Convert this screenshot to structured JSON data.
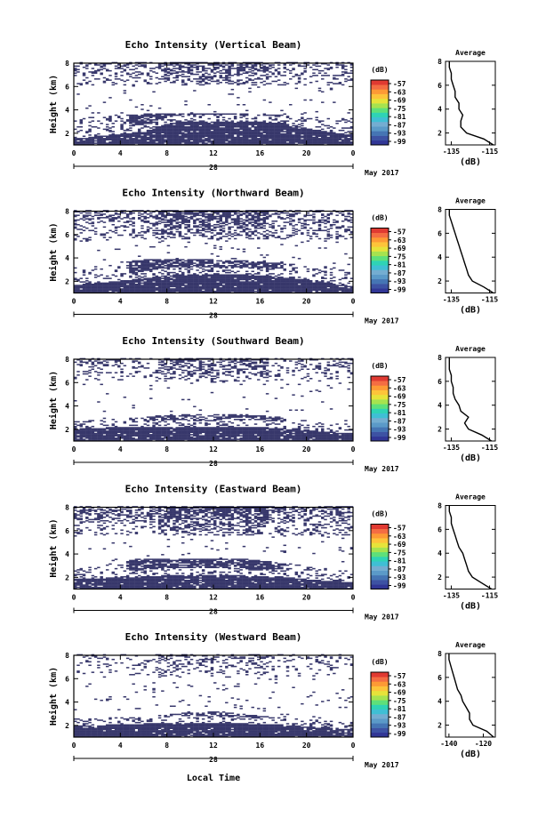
{
  "figure": {
    "xlabel": "Local Time",
    "date_label": "May 2017",
    "day_label": "28",
    "cb_unit": "(dB)",
    "cb_ticks": [
      "-57",
      "-63",
      "-69",
      "-75",
      "-81",
      "-87",
      "-93",
      "-99"
    ],
    "cb_colors": [
      "#313695",
      "#3d52a3",
      "#4575b4",
      "#5b9ac8",
      "#74add1",
      "#3fbfd4",
      "#2fd3b5",
      "#5ee07a",
      "#a6e34f",
      "#e6e33a",
      "#fdc43a",
      "#fd9a35",
      "#f46d43",
      "#e03a32"
    ]
  },
  "chart_data": [
    {
      "type": "heatmap",
      "title": "Echo Intensity (Vertical Beam)",
      "ylabel": "Height (km)",
      "xticks": [
        "0",
        "4",
        "8",
        "12",
        "16",
        "20",
        "0"
      ],
      "yticks": [
        "2",
        "4",
        "6",
        "8"
      ],
      "x_range_hours": [
        0,
        24
      ],
      "y_range_km": [
        1,
        8
      ],
      "fill_color": "#37376b",
      "layers": [
        {
          "band": "low",
          "bottom_km": 1.0,
          "top_km": [
            1.5,
            1.8,
            2.1,
            3.0,
            3.0,
            3.0,
            2.8,
            2.2,
            1.8
          ]
        },
        {
          "band": "mid",
          "top_km": [
            3.3,
            3.4,
            3.6,
            3.7,
            3.7,
            3.6,
            3.5,
            3.3,
            3.2
          ],
          "cover": 0.55
        },
        {
          "band": "upper",
          "bottom_km": 6.0,
          "top_km": 8.0,
          "cover": 0.35
        }
      ],
      "average": {
        "title": "Average",
        "xlabel": "(dB)",
        "xticks": [
          "-135",
          "-115"
        ],
        "yticks": [
          "2",
          "4",
          "6",
          "8"
        ],
        "xlim": [
          -138,
          -112
        ],
        "profile_km": [
          1.0,
          1.5,
          2.0,
          2.5,
          3.0,
          3.5,
          4.0,
          4.5,
          5.0,
          5.5,
          6.0,
          6.5,
          7.0,
          7.5,
          8.0
        ],
        "profile_db": [
          -113,
          -118,
          -127,
          -130,
          -130,
          -129,
          -131,
          -131,
          -133,
          -133,
          -134,
          -135,
          -135,
          -136,
          -136
        ]
      }
    },
    {
      "type": "heatmap",
      "title": "Echo Intensity (Northward Beam)",
      "ylabel": "Height (km)",
      "xticks": [
        "0",
        "4",
        "8",
        "12",
        "16",
        "20",
        "0"
      ],
      "yticks": [
        "2",
        "4",
        "6",
        "8"
      ],
      "x_range_hours": [
        0,
        24
      ],
      "y_range_km": [
        1,
        8
      ],
      "fill_color": "#37376b",
      "layers": [
        {
          "band": "low",
          "bottom_km": 1.0,
          "top_km": [
            1.6,
            1.9,
            2.2,
            2.6,
            2.6,
            2.5,
            2.3,
            2.0,
            1.5
          ]
        },
        {
          "band": "mid",
          "top_km": [
            3.0,
            3.5,
            3.8,
            3.9,
            3.8,
            3.7,
            3.5,
            3.2,
            3.0
          ],
          "cover": 0.5
        },
        {
          "band": "upper",
          "bottom_km": 5.5,
          "top_km": 8.0,
          "cover": 0.45
        }
      ],
      "average": {
        "title": "Average",
        "xlabel": "(dB)",
        "xticks": [
          "-135",
          "-115"
        ],
        "yticks": [
          "2",
          "4",
          "6",
          "8"
        ],
        "xlim": [
          -138,
          -112
        ],
        "profile_km": [
          1.0,
          1.5,
          2.0,
          2.5,
          3.0,
          3.5,
          4.0,
          4.5,
          5.0,
          5.5,
          6.0,
          6.5,
          7.0,
          7.5,
          8.0
        ],
        "profile_db": [
          -113,
          -118,
          -124,
          -126,
          -127,
          -128,
          -129,
          -130,
          -131,
          -132,
          -133,
          -134,
          -135,
          -136,
          -136
        ]
      }
    },
    {
      "type": "heatmap",
      "title": "Echo Intensity (Southward Beam)",
      "ylabel": "Height (km)",
      "xticks": [
        "0",
        "4",
        "8",
        "12",
        "16",
        "20",
        "0"
      ],
      "yticks": [
        "2",
        "4",
        "6",
        "8"
      ],
      "x_range_hours": [
        0,
        24
      ],
      "y_range_km": [
        1,
        8
      ],
      "fill_color": "#37376b",
      "layers": [
        {
          "band": "low",
          "bottom_km": 1.0,
          "top_km": [
            2.0,
            2.1,
            2.2,
            2.2,
            2.2,
            2.2,
            2.0,
            1.8,
            1.6
          ]
        },
        {
          "band": "mid",
          "top_km": [
            2.6,
            2.8,
            3.0,
            3.3,
            3.3,
            3.2,
            3.0,
            2.6,
            2.4
          ],
          "cover": 0.35
        },
        {
          "band": "upper",
          "bottom_km": 6.0,
          "top_km": 8.0,
          "cover": 0.3
        }
      ],
      "average": {
        "title": "Average",
        "xlabel": "(dB)",
        "xticks": [
          "-135",
          "-115"
        ],
        "yticks": [
          "2",
          "4",
          "6",
          "8"
        ],
        "xlim": [
          -138,
          -112
        ],
        "profile_km": [
          1.0,
          1.5,
          2.0,
          2.5,
          3.0,
          3.5,
          4.0,
          4.5,
          5.0,
          5.5,
          6.0,
          6.5,
          7.0,
          7.5,
          8.0
        ],
        "profile_db": [
          -114,
          -119,
          -126,
          -128,
          -126,
          -130,
          -131,
          -133,
          -134,
          -134,
          -135,
          -135,
          -136,
          -136,
          -136
        ]
      }
    },
    {
      "type": "heatmap",
      "title": "Echo Intensity (Eastward Beam)",
      "ylabel": "Height (km)",
      "xticks": [
        "0",
        "4",
        "8",
        "12",
        "16",
        "20",
        "0"
      ],
      "yticks": [
        "2",
        "4",
        "6",
        "8"
      ],
      "x_range_hours": [
        0,
        24
      ],
      "y_range_km": [
        1,
        8
      ],
      "fill_color": "#37376b",
      "layers": [
        {
          "band": "low",
          "bottom_km": 1.0,
          "top_km": [
            1.8,
            1.9,
            2.0,
            2.2,
            2.2,
            2.1,
            2.0,
            1.7,
            1.5
          ]
        },
        {
          "band": "mid",
          "top_km": [
            2.8,
            3.2,
            3.6,
            3.6,
            3.6,
            3.5,
            3.2,
            2.8,
            2.5
          ],
          "cover": 0.5
        },
        {
          "band": "upper",
          "bottom_km": 5.5,
          "top_km": 8.0,
          "cover": 0.45
        }
      ],
      "average": {
        "title": "Average",
        "xlabel": "(dB)",
        "xticks": [
          "-135",
          "-115"
        ],
        "yticks": [
          "2",
          "4",
          "6",
          "8"
        ],
        "xlim": [
          -138,
          -112
        ],
        "profile_km": [
          1.0,
          1.5,
          2.0,
          2.5,
          3.0,
          3.5,
          4.0,
          4.5,
          5.0,
          5.5,
          6.0,
          6.5,
          7.0,
          7.5,
          8.0
        ],
        "profile_db": [
          -114,
          -119,
          -124,
          -126,
          -127,
          -128,
          -129,
          -131,
          -132,
          -133,
          -134,
          -135,
          -135,
          -136,
          -136
        ]
      }
    },
    {
      "type": "heatmap",
      "title": "Echo Intensity (Westward Beam)",
      "ylabel": "Height (km)",
      "xticks": [
        "0",
        "4",
        "8",
        "12",
        "16",
        "20",
        "0"
      ],
      "yticks": [
        "2",
        "4",
        "6",
        "8"
      ],
      "x_range_hours": [
        0,
        24
      ],
      "y_range_km": [
        1,
        8
      ],
      "fill_color": "#37376b",
      "layers": [
        {
          "band": "low",
          "bottom_km": 1.0,
          "top_km": [
            1.9,
            2.0,
            2.1,
            2.2,
            2.2,
            2.1,
            2.0,
            1.8,
            1.6
          ]
        },
        {
          "band": "mid",
          "top_km": [
            2.3,
            2.5,
            2.6,
            3.0,
            3.2,
            2.9,
            2.6,
            2.3,
            2.2
          ],
          "cover": 0.3
        },
        {
          "band": "upper",
          "bottom_km": 6.0,
          "top_km": 8.0,
          "cover": 0.2
        }
      ],
      "average": {
        "title": "Average",
        "xlabel": "(dB)",
        "xticks": [
          "-140",
          "-120"
        ],
        "yticks": [
          "2",
          "4",
          "6",
          "8"
        ],
        "xlim": [
          -142,
          -113
        ],
        "profile_km": [
          1.0,
          1.5,
          2.0,
          2.5,
          3.0,
          3.5,
          4.0,
          4.5,
          5.0,
          5.5,
          6.0,
          6.5,
          7.0,
          7.5,
          8.0
        ],
        "profile_db": [
          -114,
          -118,
          -126,
          -128,
          -128,
          -130,
          -132,
          -133,
          -135,
          -136,
          -137,
          -138,
          -139,
          -140,
          -140
        ]
      }
    }
  ]
}
